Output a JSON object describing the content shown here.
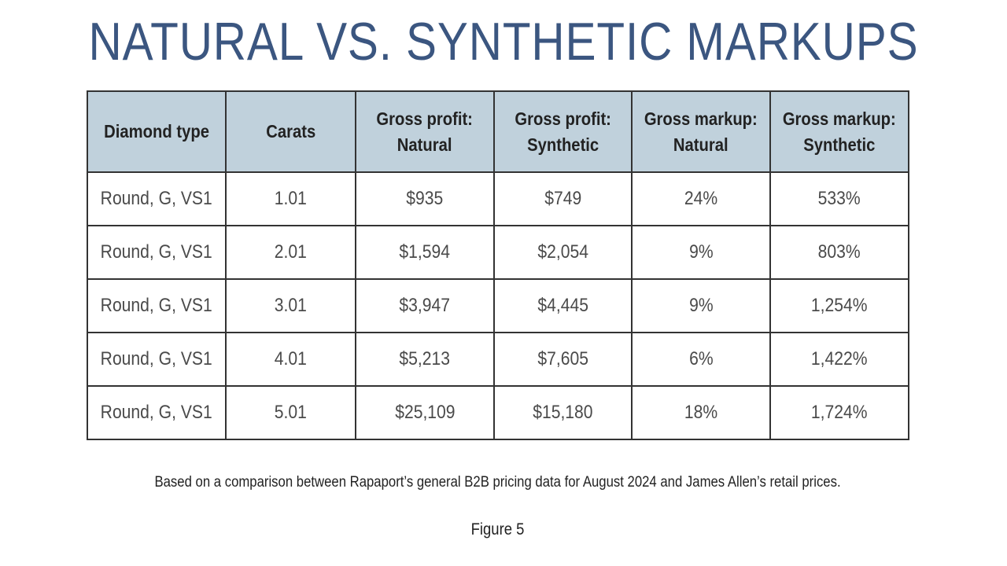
{
  "title": "NATURAL VS. SYNTHETIC MARKUPS",
  "colors": {
    "title": "#3b5680",
    "header_background": "#c0d1dc",
    "border": "#333333"
  },
  "chart_data": {
    "type": "table",
    "title": "NATURAL VS. SYNTHETIC MARKUPS",
    "columns": [
      [
        "Diamond type"
      ],
      [
        "Carats"
      ],
      [
        "Gross profit:",
        "Natural"
      ],
      [
        "Gross profit:",
        "Synthetic"
      ],
      [
        "Gross markup:",
        "Natural"
      ],
      [
        "Gross markup:",
        "Synthetic"
      ]
    ],
    "rows": [
      [
        "Round, G, VS1",
        "1.01",
        "$935",
        "$749",
        "24%",
        "533%"
      ],
      [
        "Round, G, VS1",
        "2.01",
        "$1,594",
        "$2,054",
        "9%",
        "803%"
      ],
      [
        "Round, G, VS1",
        "3.01",
        "$3,947",
        "$4,445",
        "9%",
        "1,254%"
      ],
      [
        "Round, G, VS1",
        "4.01",
        "$5,213",
        "$7,605",
        "6%",
        "1,422%"
      ],
      [
        "Round, G, VS1",
        "5.01",
        "$25,109",
        "$15,180",
        "18%",
        "1,724%"
      ]
    ]
  },
  "footnote": "Based on a comparison between Rapaport’s general B2B pricing data for August 2024 and James Allen’s retail prices.",
  "figure_label": "Figure 5"
}
